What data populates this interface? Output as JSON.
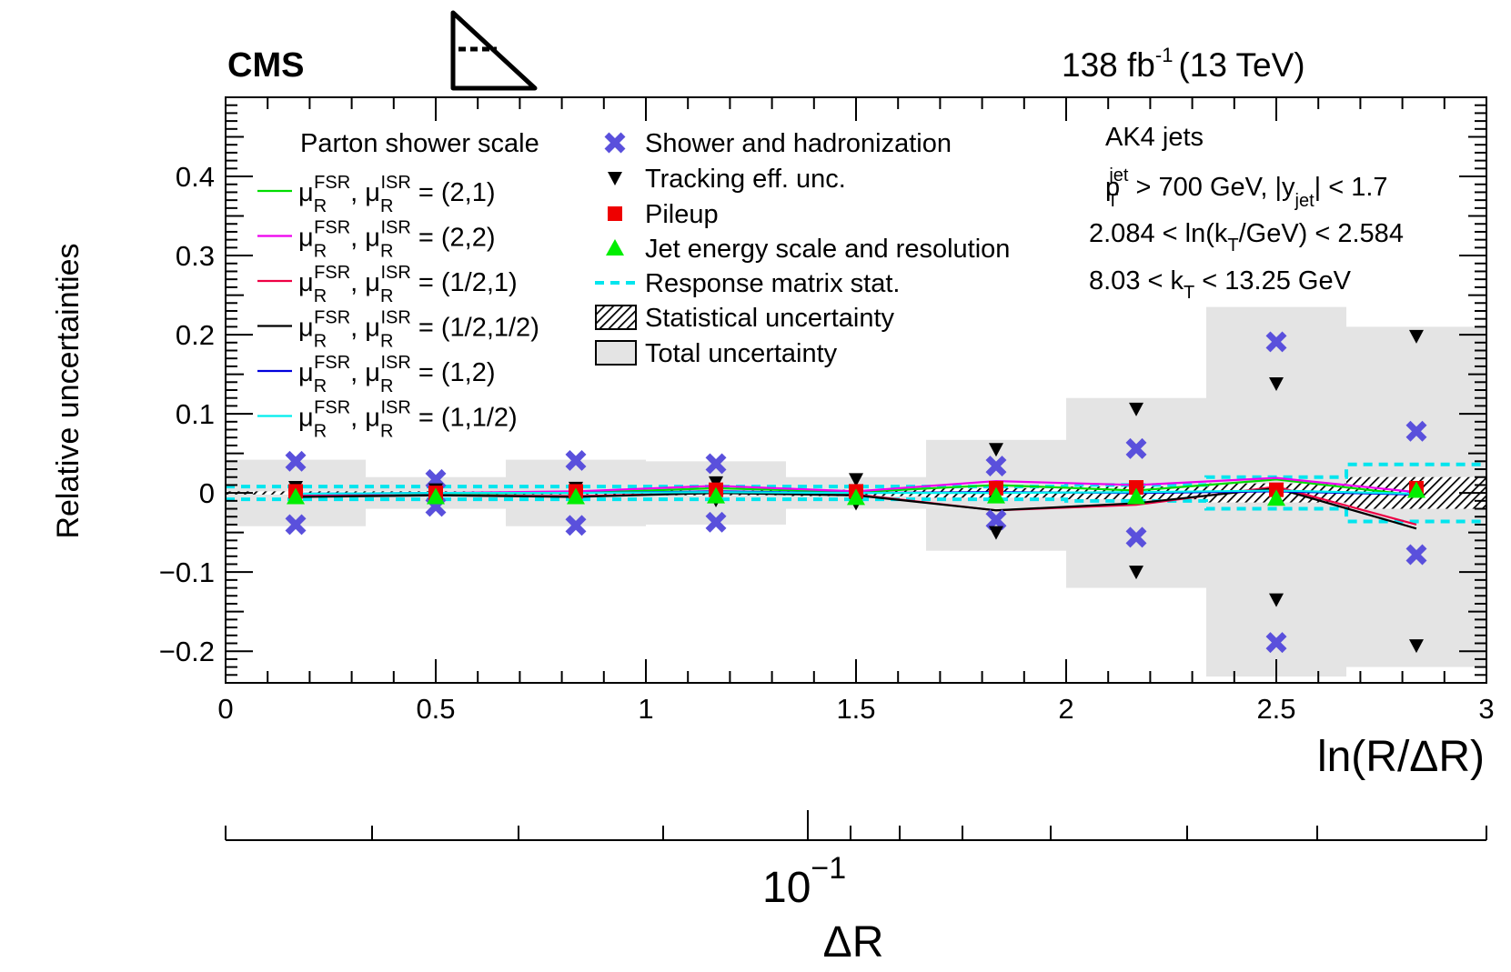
{
  "chart_data": {
    "type": "scatter",
    "experiment": "CMS",
    "luminosity": "138 fb",
    "lumi_exp": "-1",
    "energy": "(13 TeV)",
    "xlabel": "ln(R/ΔR)",
    "ylabel": "Relative uncertainties",
    "xlim": [
      0,
      3
    ],
    "ylim": [
      -0.24,
      0.5
    ],
    "x_ticks": [
      "0",
      "0.5",
      "1",
      "1.5",
      "2",
      "2.5",
      "3"
    ],
    "y_ticks": [
      "0.4",
      "0.3",
      "0.2",
      "0.1",
      "0",
      "−0.1",
      "−0.2"
    ],
    "secondary_axis": {
      "label": "ΔR",
      "tick_base": "10",
      "tick_exp": "−1",
      "major_value": 0.1
    },
    "annotations": {
      "jets": "AK4 jets",
      "pt_cut": [
        "p",
        "T",
        "jet",
        " > 700 GeV, |y",
        "jet",
        "| < 1.7"
      ],
      "lnkt_range": [
        "2.084 < ln(k",
        "T",
        "/GeV) < 2.584"
      ],
      "kt_range": [
        "8.03 < k",
        "T",
        " < 13.25 GeV"
      ]
    },
    "legend_title": "Parton shower scale",
    "bin_edges": [
      0,
      0.3333,
      0.6667,
      1.0,
      1.3333,
      1.6667,
      2.0,
      2.3333,
      2.6667,
      3.0
    ],
    "bin_centers": [
      0.1667,
      0.5,
      0.8333,
      1.1667,
      1.5,
      1.8333,
      2.1667,
      2.5,
      2.8333
    ],
    "total_uncertainty": [
      0.042,
      0.02,
      0.042,
      0.04,
      0.02,
      0.067,
      0.12,
      0.235,
      0.21
    ],
    "total_uncertainty_down": [
      -0.042,
      -0.02,
      -0.042,
      -0.04,
      -0.02,
      -0.073,
      -0.12,
      -0.232,
      -0.22
    ],
    "statistical_uncertainty": [
      0.002,
      0.002,
      0.002,
      0.003,
      0.004,
      0.006,
      0.008,
      0.012,
      0.02
    ],
    "response_matrix_stat": [
      0.008,
      0.008,
      0.008,
      0.008,
      0.008,
      0.008,
      0.01,
      0.02,
      0.036
    ],
    "series": [
      {
        "name": "(2,1)",
        "fsr": "FSR",
        "isr": "ISR",
        "color": "#00dd00",
        "values": [
          -0.003,
          -0.001,
          0.0,
          0.006,
          0.001,
          0.01,
          0.003,
          0.017,
          -0.003
        ]
      },
      {
        "name": "(2,2)",
        "fsr": "FSR",
        "isr": "ISR",
        "color": "#ee00ee",
        "values": [
          -0.002,
          0.0,
          0.002,
          0.009,
          0.002,
          0.015,
          0.01,
          0.019,
          0.001
        ]
      },
      {
        "name": "(1/2,1)",
        "fsr": "FSR",
        "isr": "ISR",
        "color": "#ee0044",
        "values": [
          -0.004,
          -0.003,
          -0.004,
          0.0,
          -0.002,
          -0.022,
          -0.015,
          0.008,
          -0.04
        ]
      },
      {
        "name": "(1/2,1/2)",
        "fsr": "FSR",
        "isr": "ISR",
        "color": "#000000",
        "values": [
          -0.005,
          -0.003,
          -0.005,
          0.0,
          -0.003,
          -0.022,
          -0.013,
          0.006,
          -0.045
        ]
      },
      {
        "name": "(1,2)",
        "fsr": "FSR",
        "isr": "ISR",
        "color": "#0000dd",
        "values": [
          -0.001,
          0.0,
          0.0,
          0.002,
          0.0,
          0.001,
          0.0,
          0.002,
          -0.002
        ]
      },
      {
        "name": "(1,1/2)",
        "fsr": "FSR",
        "isr": "ISR",
        "color": "#00eeee",
        "values": [
          -0.001,
          0.0,
          0.0,
          0.001,
          0.0,
          0.0,
          0.001,
          0.003,
          -0.001
        ]
      }
    ],
    "markers": [
      {
        "name": "Shower and hadronization",
        "symbol": "cross",
        "color": "#5a50dc",
        "up": [
          0.04,
          0.017,
          0.041,
          0.037,
          0.0,
          0.034,
          0.056,
          0.191,
          0.078
        ],
        "down": [
          -0.04,
          -0.017,
          -0.041,
          -0.037,
          0.0,
          -0.034,
          -0.056,
          -0.189,
          -0.078
        ]
      },
      {
        "name": "Tracking eff. unc.",
        "symbol": "triangle-down",
        "color": "#000000",
        "up": [
          0.007,
          0.004,
          0.006,
          0.013,
          0.017,
          0.055,
          0.106,
          0.138,
          0.198
        ],
        "down": [
          -0.004,
          -0.002,
          -0.002,
          -0.009,
          -0.013,
          -0.05,
          -0.1,
          -0.135,
          -0.193
        ]
      },
      {
        "name": "Pileup",
        "symbol": "square",
        "color": "#ee0000",
        "up": [
          0.002,
          0.0,
          0.002,
          0.004,
          0.002,
          0.006,
          0.007,
          0.004,
          0.006
        ],
        "down": []
      },
      {
        "name": "Jet energy scale and resolution",
        "symbol": "triangle-up",
        "color": "#00ee00",
        "up": [
          -0.005,
          -0.005,
          -0.005,
          -0.004,
          -0.006,
          -0.004,
          -0.005,
          -0.007,
          0.003
        ],
        "down": []
      }
    ],
    "legend_right": [
      "Shower and hadronization",
      "Tracking eff. unc.",
      "Pileup",
      "Jet energy scale and resolution",
      "Response matrix stat.",
      "Statistical uncertainty",
      "Total uncertainty"
    ]
  }
}
